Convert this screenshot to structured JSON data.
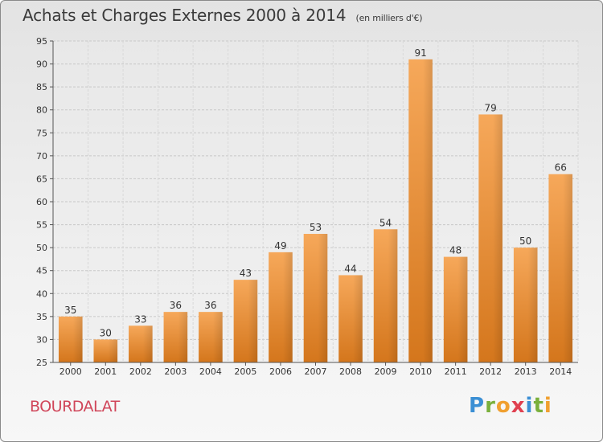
{
  "chart_data": {
    "type": "bar",
    "title": "Achats et Charges Externes 2000 à 2014",
    "subtitle": "(en milliers d'€)",
    "xlabel": "",
    "ylabel": "",
    "categories": [
      "2000",
      "2001",
      "2002",
      "2003",
      "2004",
      "2005",
      "2006",
      "2007",
      "2008",
      "2009",
      "2010",
      "2011",
      "2012",
      "2013",
      "2014"
    ],
    "values": [
      35,
      30,
      33,
      36,
      36,
      43,
      49,
      53,
      44,
      54,
      91,
      48,
      79,
      50,
      66
    ],
    "ylim": [
      25,
      95
    ],
    "yticks": [
      25,
      30,
      35,
      40,
      45,
      50,
      55,
      60,
      65,
      70,
      75,
      80,
      85,
      90,
      95
    ],
    "grid": true,
    "bar_color": "#f0a048"
  },
  "commune": "BOURDALAT",
  "brand": [
    "P",
    "r",
    "o",
    "x",
    "i",
    "t",
    "i"
  ],
  "brand_colors": [
    "#3b8fd4",
    "#7ab03c",
    "#f0a030",
    "#e04050",
    "#3b8fd4",
    "#7ab03c",
    "#f0a030"
  ]
}
